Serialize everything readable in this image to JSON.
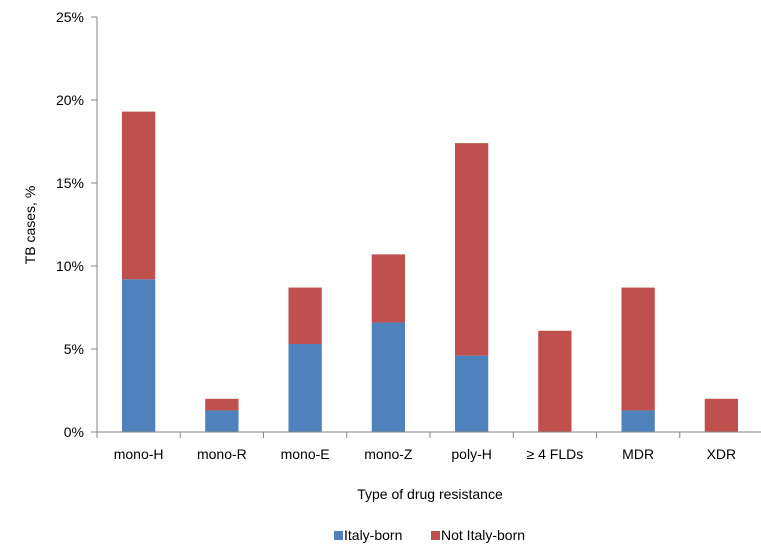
{
  "chart_data": {
    "type": "bar",
    "stacked": true,
    "title": "",
    "xlabel": "Type of drug resistance",
    "ylabel": "TB cases, %",
    "ylim": [
      0,
      25
    ],
    "yticks": [
      "0%",
      "5%",
      "10%",
      "15%",
      "20%",
      "25%"
    ],
    "categories": [
      "mono-H",
      "mono-R",
      "mono-E",
      "mono-Z",
      "poly-H",
      "≥ 4 FLDs",
      "MDR",
      "XDR"
    ],
    "series": [
      {
        "name": "Italy-born",
        "color": "#4f81bd",
        "values": [
          9.2,
          1.3,
          5.3,
          6.6,
          4.6,
          0,
          1.3,
          0
        ]
      },
      {
        "name": "Not Italy-born",
        "color": "#c0504d",
        "values": [
          10.1,
          0.7,
          3.4,
          4.1,
          12.8,
          6.1,
          7.4,
          2.0
        ]
      }
    ],
    "grid": false,
    "legend_position": "bottom"
  }
}
